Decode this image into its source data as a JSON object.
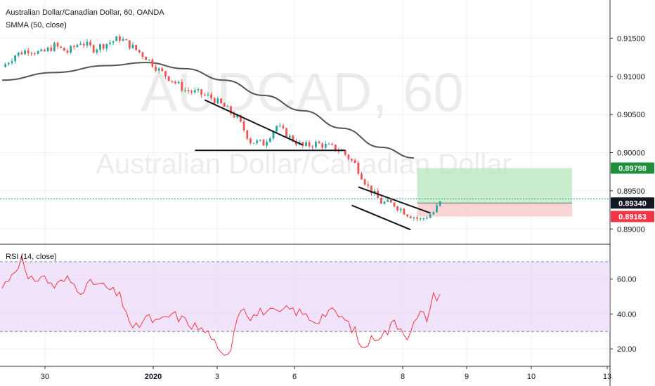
{
  "header": {
    "symbol_title": "Australian Dollar/Canadian Dollar, 60, OANDA",
    "indicator_label": "SMMA (50, close)"
  },
  "watermark": {
    "ticker": "AUDCAD, 60",
    "description": "Australian Dollar/Canadian Dollar"
  },
  "rsi_panel": {
    "label": "RSI (14, close)"
  },
  "colors": {
    "bull_candle": "#26a69a",
    "bear_candle": "#ef5350",
    "smma_line": "#555555",
    "rsi_line": "#f23645",
    "rsi_band": "#e6ccf5",
    "target_zone": "#b7e4be",
    "stop_zone": "#f9c6c6",
    "target_tag": "#1e8f3a",
    "stop_tag": "#f23645",
    "current_tag": "#131722",
    "current_line": "#26a69a"
  },
  "chart_data": [
    {
      "type": "candlestick",
      "title": "Australian Dollar/Canadian Dollar, 60, OANDA",
      "x_ticks": [
        "30",
        "2020",
        "3",
        "6",
        "8",
        "9",
        "10",
        "13"
      ],
      "y_ticks": [
        "0.91500",
        "0.91000",
        "0.90500",
        "0.90000",
        "0.89500",
        "0.89000"
      ],
      "ylim": [
        0.888,
        0.92
      ],
      "price_tags": [
        {
          "name": "target",
          "value": "0.89798"
        },
        {
          "name": "current",
          "value": "0.89340"
        },
        {
          "name": "stop",
          "value": "0.89163"
        }
      ],
      "close_path": [
        {
          "x": 0,
          "y": 0.9112
        },
        {
          "x": 2,
          "y": 0.9128
        },
        {
          "x": 4,
          "y": 0.9135
        },
        {
          "x": 6,
          "y": 0.913
        },
        {
          "x": 8,
          "y": 0.914
        },
        {
          "x": 10,
          "y": 0.9132
        },
        {
          "x": 12,
          "y": 0.9145
        },
        {
          "x": 14,
          "y": 0.9136
        },
        {
          "x": 16,
          "y": 0.9143
        },
        {
          "x": 18,
          "y": 0.915
        },
        {
          "x": 20,
          "y": 0.9138
        },
        {
          "x": 22,
          "y": 0.9125
        },
        {
          "x": 24,
          "y": 0.9108
        },
        {
          "x": 26,
          "y": 0.9095
        },
        {
          "x": 28,
          "y": 0.9082
        },
        {
          "x": 30,
          "y": 0.9078
        },
        {
          "x": 32,
          "y": 0.9072
        },
        {
          "x": 34,
          "y": 0.906
        },
        {
          "x": 36,
          "y": 0.9045
        },
        {
          "x": 38,
          "y": 0.9015
        },
        {
          "x": 40,
          "y": 0.9012
        },
        {
          "x": 42,
          "y": 0.9035
        },
        {
          "x": 44,
          "y": 0.902
        },
        {
          "x": 46,
          "y": 0.9008
        },
        {
          "x": 48,
          "y": 0.9012
        },
        {
          "x": 50,
          "y": 0.9008
        },
        {
          "x": 52,
          "y": 0.9002
        },
        {
          "x": 54,
          "y": 0.8985
        },
        {
          "x": 56,
          "y": 0.8955
        },
        {
          "x": 58,
          "y": 0.8935
        },
        {
          "x": 60,
          "y": 0.8932
        },
        {
          "x": 62,
          "y": 0.892
        },
        {
          "x": 64,
          "y": 0.8912
        },
        {
          "x": 66,
          "y": 0.8922
        },
        {
          "x": 67,
          "y": 0.8934
        }
      ],
      "smma_path": [
        {
          "x": 0,
          "y": 0.9095
        },
        {
          "x": 8,
          "y": 0.9105
        },
        {
          "x": 16,
          "y": 0.9114
        },
        {
          "x": 22,
          "y": 0.9118
        },
        {
          "x": 28,
          "y": 0.911
        },
        {
          "x": 34,
          "y": 0.9095
        },
        {
          "x": 40,
          "y": 0.9075
        },
        {
          "x": 46,
          "y": 0.9055
        },
        {
          "x": 52,
          "y": 0.9032
        },
        {
          "x": 58,
          "y": 0.9007
        },
        {
          "x": 63,
          "y": 0.8993
        }
      ],
      "trendlines": [
        {
          "name": "flag-upper",
          "from": {
            "x": 31,
            "y": 0.9069
          },
          "to": {
            "x": 46,
            "y": 0.901
          }
        },
        {
          "name": "support",
          "from": {
            "x": 29.5,
            "y": 0.9003
          },
          "to": {
            "x": 52.5,
            "y": 0.9003
          }
        },
        {
          "name": "channel-upper",
          "from": {
            "x": 54.5,
            "y": 0.8955
          },
          "to": {
            "x": 65.5,
            "y": 0.8921
          }
        },
        {
          "name": "channel-lower",
          "from": {
            "x": 53.5,
            "y": 0.8931
          },
          "to": {
            "x": 62.5,
            "y": 0.8899
          }
        }
      ],
      "position": {
        "entry": 0.8934,
        "target": 0.89798,
        "stop": 0.89163,
        "x_start": 63.5,
        "x_end": 78
      }
    },
    {
      "type": "line",
      "title": "RSI (14, close)",
      "y_ticks": [
        "60.00",
        "40.00",
        "20.00"
      ],
      "ylim": [
        10,
        80
      ],
      "band": [
        30,
        70
      ],
      "values": [
        {
          "x": 0,
          "y": 55
        },
        {
          "x": 2,
          "y": 66
        },
        {
          "x": 3,
          "y": 72
        },
        {
          "x": 4,
          "y": 58
        },
        {
          "x": 6,
          "y": 62
        },
        {
          "x": 8,
          "y": 56
        },
        {
          "x": 10,
          "y": 60
        },
        {
          "x": 12,
          "y": 54
        },
        {
          "x": 14,
          "y": 58
        },
        {
          "x": 16,
          "y": 55
        },
        {
          "x": 18,
          "y": 50
        },
        {
          "x": 19,
          "y": 42
        },
        {
          "x": 20,
          "y": 30
        },
        {
          "x": 22,
          "y": 38
        },
        {
          "x": 24,
          "y": 35
        },
        {
          "x": 26,
          "y": 40
        },
        {
          "x": 28,
          "y": 36
        },
        {
          "x": 30,
          "y": 32
        },
        {
          "x": 32,
          "y": 28
        },
        {
          "x": 33,
          "y": 18
        },
        {
          "x": 34,
          "y": 15
        },
        {
          "x": 35,
          "y": 22
        },
        {
          "x": 36,
          "y": 40
        },
        {
          "x": 37,
          "y": 45
        },
        {
          "x": 38,
          "y": 38
        },
        {
          "x": 40,
          "y": 42
        },
        {
          "x": 42,
          "y": 40
        },
        {
          "x": 44,
          "y": 43
        },
        {
          "x": 46,
          "y": 40
        },
        {
          "x": 48,
          "y": 36
        },
        {
          "x": 50,
          "y": 42
        },
        {
          "x": 52,
          "y": 38
        },
        {
          "x": 54,
          "y": 30
        },
        {
          "x": 55,
          "y": 20
        },
        {
          "x": 57,
          "y": 27
        },
        {
          "x": 59,
          "y": 30
        },
        {
          "x": 60,
          "y": 36
        },
        {
          "x": 62,
          "y": 28
        },
        {
          "x": 64,
          "y": 40
        },
        {
          "x": 65,
          "y": 38
        },
        {
          "x": 66,
          "y": 50
        },
        {
          "x": 67,
          "y": 51
        }
      ]
    }
  ]
}
